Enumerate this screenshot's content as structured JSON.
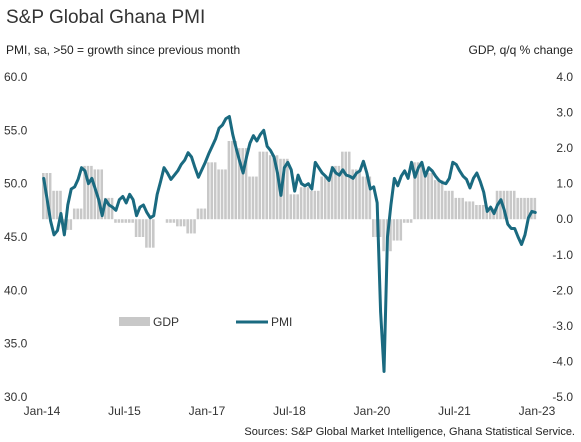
{
  "chart_data": {
    "type": "bar+line",
    "title": "S&P Global Ghana PMI",
    "left_axis_label": "PMI, sa, >50 = growth since previous month",
    "right_axis_label": "GDP, q/q % change",
    "left_ylim": [
      30,
      60
    ],
    "right_ylim": [
      -5,
      4
    ],
    "left_ticks": [
      "60.0",
      "55.0",
      "50.0",
      "45.0",
      "40.0",
      "35.0",
      "30.0"
    ],
    "right_ticks": [
      "4.0",
      "3.0",
      "2.0",
      "1.0",
      "0.0",
      "-1.0",
      "-2.0",
      "-3.0",
      "-4.0",
      "-5.0"
    ],
    "x_ticks": [
      "Jan-14",
      "Jul-15",
      "Jan-17",
      "Jul-18",
      "Jan-20",
      "Jul-21",
      "Jan-23"
    ],
    "x_start": "2014-01",
    "x_end": "2023-01",
    "grid": false,
    "legend": [
      {
        "name": "GDP",
        "color": "#c8c8c8",
        "kind": "bar"
      },
      {
        "name": "PMI",
        "color": "#1a6a80",
        "kind": "line"
      }
    ],
    "colors": {
      "gdp": "#c8c8c8",
      "pmi": "#1a6a80"
    },
    "source": "Sources: S&P Global Market Intelligence, Ghana Statistical Service.",
    "series": [
      {
        "name": "GDP",
        "kind": "bar",
        "axis": "right",
        "values": [
          1.3,
          1.3,
          1.3,
          0.8,
          0.8,
          0.8,
          -0.3,
          -0.3,
          -0.3,
          0.3,
          0.3,
          0.3,
          1.5,
          1.5,
          1.5,
          1.4,
          1.4,
          1.4,
          0.6,
          0.6,
          0.6,
          -0.1,
          -0.1,
          -0.1,
          -0.1,
          -0.1,
          -0.1,
          -0.5,
          -0.5,
          -0.5,
          -0.8,
          -0.8,
          -0.8,
          0.0,
          0.0,
          0.0,
          -0.1,
          -0.1,
          -0.1,
          -0.2,
          -0.2,
          -0.2,
          -0.4,
          -0.4,
          -0.4,
          0.3,
          0.3,
          0.3,
          1.6,
          1.6,
          1.6,
          1.4,
          1.4,
          1.4,
          2.2,
          2.2,
          2.2,
          2.0,
          2.0,
          2.0,
          1.2,
          1.2,
          1.2,
          1.9,
          1.9,
          1.9,
          1.8,
          1.8,
          1.8,
          1.7,
          1.7,
          1.7,
          0.7,
          0.7,
          0.7,
          0.9,
          0.9,
          0.9,
          0.8,
          0.8,
          0.8,
          1.2,
          1.2,
          1.2,
          1.5,
          1.5,
          1.5,
          1.9,
          1.9,
          1.9,
          1.4,
          1.4,
          1.4,
          1.2,
          1.2,
          1.2,
          -0.5,
          -0.5,
          -0.5,
          -0.9,
          -0.9,
          -0.9,
          -0.6,
          -0.6,
          -0.6,
          -0.1,
          -0.1,
          -0.1,
          1.6,
          1.6,
          1.6,
          1.3,
          1.3,
          1.3,
          1.1,
          1.1,
          1.1,
          0.8,
          0.8,
          0.8,
          0.6,
          0.6,
          0.6,
          0.5,
          0.5,
          0.5,
          0.4,
          0.4,
          0.4,
          0.3,
          0.3,
          0.3,
          0.8,
          0.8,
          0.8,
          0.8,
          0.8,
          0.8,
          0.6,
          0.6,
          0.6,
          0.6,
          0.6,
          0.6
        ]
      },
      {
        "name": "PMI",
        "kind": "line",
        "axis": "left",
        "values": [
          50.5,
          48.5,
          46.5,
          45.2,
          45.6,
          47.2,
          45.2,
          48.0,
          49.5,
          49.7,
          50.4,
          51.5,
          51.2,
          50.0,
          50.5,
          49.5,
          48.5,
          47.0,
          48.5,
          48.0,
          47.8,
          47.5,
          48.5,
          48.8,
          48.2,
          49.0,
          48.5,
          47.0,
          47.8,
          48.0,
          47.3,
          46.8,
          47.0,
          49.0,
          50.2,
          51.5,
          51.0,
          50.4,
          50.8,
          51.2,
          51.8,
          52.2,
          52.9,
          52.5,
          51.5,
          50.6,
          51.3,
          52.0,
          52.8,
          53.5,
          54.2,
          55.2,
          55.5,
          56.1,
          56.3,
          54.6,
          53.3,
          52.1,
          51.0,
          52.5,
          53.8,
          54.5,
          54.0,
          54.6,
          55.0,
          53.5,
          53.1,
          52.5,
          51.0,
          48.9,
          51.5,
          52.0,
          51.3,
          49.3,
          50.8,
          50.0,
          49.8,
          50.0,
          49.5,
          52.0,
          51.5,
          51.0,
          50.7,
          50.3,
          51.5,
          51.0,
          50.8,
          51.3,
          50.8,
          50.7,
          50.5,
          51.0,
          51.2,
          52.1,
          51.0,
          49.5,
          49.7,
          48.2,
          38.0,
          32.4,
          45.0,
          48.0,
          50.5,
          49.8,
          50.7,
          51.2,
          50.5,
          52.0,
          50.6,
          51.5,
          52.0,
          50.7,
          51.5,
          51.2,
          50.7,
          50.3,
          50.1,
          50.0,
          50.5,
          52.0,
          51.8,
          51.2,
          50.7,
          50.4,
          49.6,
          50.5,
          51.0,
          50.2,
          49.2,
          47.4,
          47.8,
          47.2,
          48.0,
          48.5,
          47.5,
          46.2,
          45.8,
          45.8,
          45.0,
          44.3,
          45.2,
          46.8,
          47.4,
          47.3
        ]
      }
    ]
  }
}
